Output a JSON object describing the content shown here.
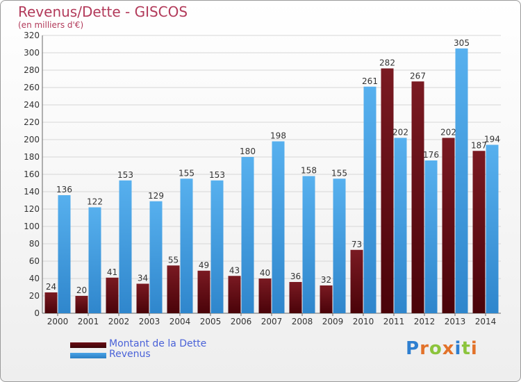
{
  "title": "Revenus/Dette - GISCOS",
  "subtitle": "(en milliers d'€)",
  "logo_text": "Proxiti",
  "colors": {
    "dette": "#6b0d14",
    "revenus": "#4aa3e6",
    "title": "#b23a5a",
    "legend_text": "#4a62d8"
  },
  "chart_data": {
    "type": "bar",
    "title": "Revenus/Dette - GISCOS",
    "subtitle": "(en milliers d'€)",
    "categories": [
      "2000",
      "2001",
      "2002",
      "2003",
      "2004",
      "2005",
      "2006",
      "2007",
      "2008",
      "2009",
      "2010",
      "2011",
      "2012",
      "2013",
      "2014"
    ],
    "series": [
      {
        "name": "Montant de la Dette",
        "values": [
          24,
          20,
          41,
          34,
          55,
          49,
          43,
          40,
          36,
          32,
          73,
          282,
          267,
          202,
          187
        ]
      },
      {
        "name": "Revenus",
        "values": [
          136,
          122,
          153,
          129,
          155,
          153,
          180,
          198,
          158,
          155,
          261,
          202,
          176,
          305,
          194
        ]
      }
    ],
    "ylim": [
      0,
      320
    ],
    "yticks": [
      0,
      20,
      40,
      60,
      80,
      100,
      120,
      140,
      160,
      180,
      200,
      220,
      240,
      260,
      280,
      300,
      320
    ],
    "grid": true,
    "legend_position": "bottom-left"
  }
}
